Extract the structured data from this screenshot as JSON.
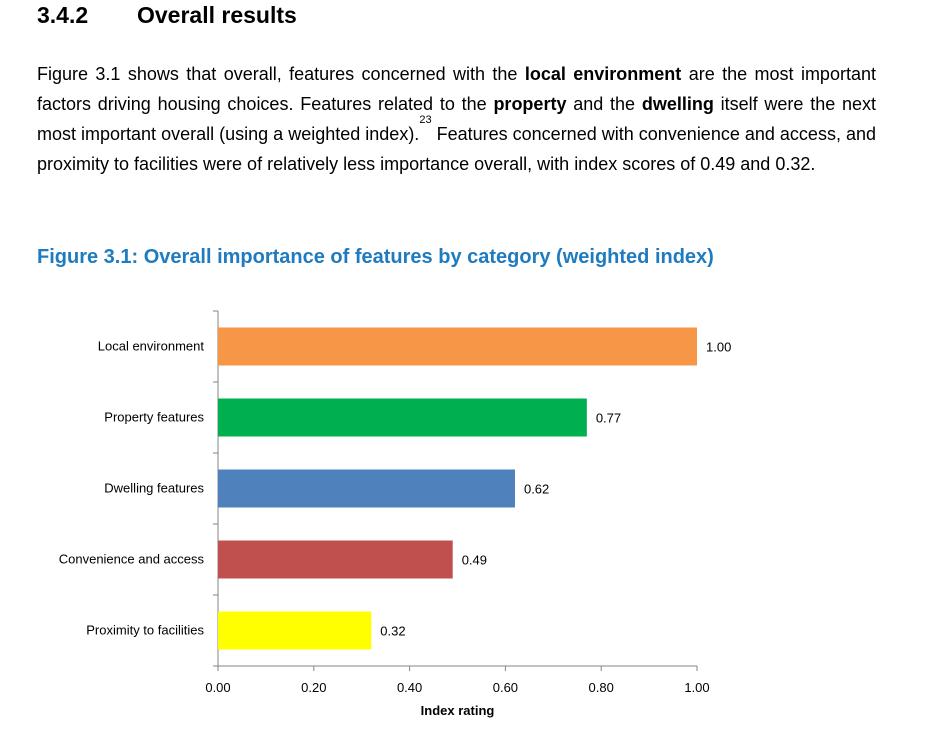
{
  "section": {
    "number": "3.4.2",
    "title": "Overall results"
  },
  "paragraph": {
    "p1": "Figure 3.1 shows that overall, features concerned with the ",
    "b1": "local environment",
    "p2": " are the most important factors driving housing choices. Features related to the ",
    "b2": "property",
    "p3": " and the ",
    "b3": "dwelling",
    "p4": " itself were the next most important overall (using a weighted index).",
    "footnote": "23",
    "p5": " Features concerned with convenience and access, and proximity to facilities were of relatively less importance overall, with index scores of 0.49 and 0.32."
  },
  "chart_data": {
    "type": "bar",
    "orientation": "horizontal",
    "title": "Figure 3.1: Overall importance of features by category (weighted index)",
    "categories": [
      "Local environment",
      "Property features",
      "Dwelling features",
      "Convenience and access",
      "Proximity to facilities"
    ],
    "values": [
      1.0,
      0.77,
      0.62,
      0.49,
      0.32
    ],
    "data_labels": [
      "1.00",
      "0.77",
      "0.62",
      "0.49",
      "0.32"
    ],
    "colors": [
      "#f79646",
      "#00b050",
      "#4f81bd",
      "#c0504d",
      "#ffff00"
    ],
    "xlabel": "Index rating",
    "ylabel": "",
    "xlim": [
      0,
      1
    ],
    "xticks": [
      "0.00",
      "0.20",
      "0.40",
      "0.60",
      "0.80",
      "1.00"
    ],
    "grid": false,
    "legend": "none"
  }
}
